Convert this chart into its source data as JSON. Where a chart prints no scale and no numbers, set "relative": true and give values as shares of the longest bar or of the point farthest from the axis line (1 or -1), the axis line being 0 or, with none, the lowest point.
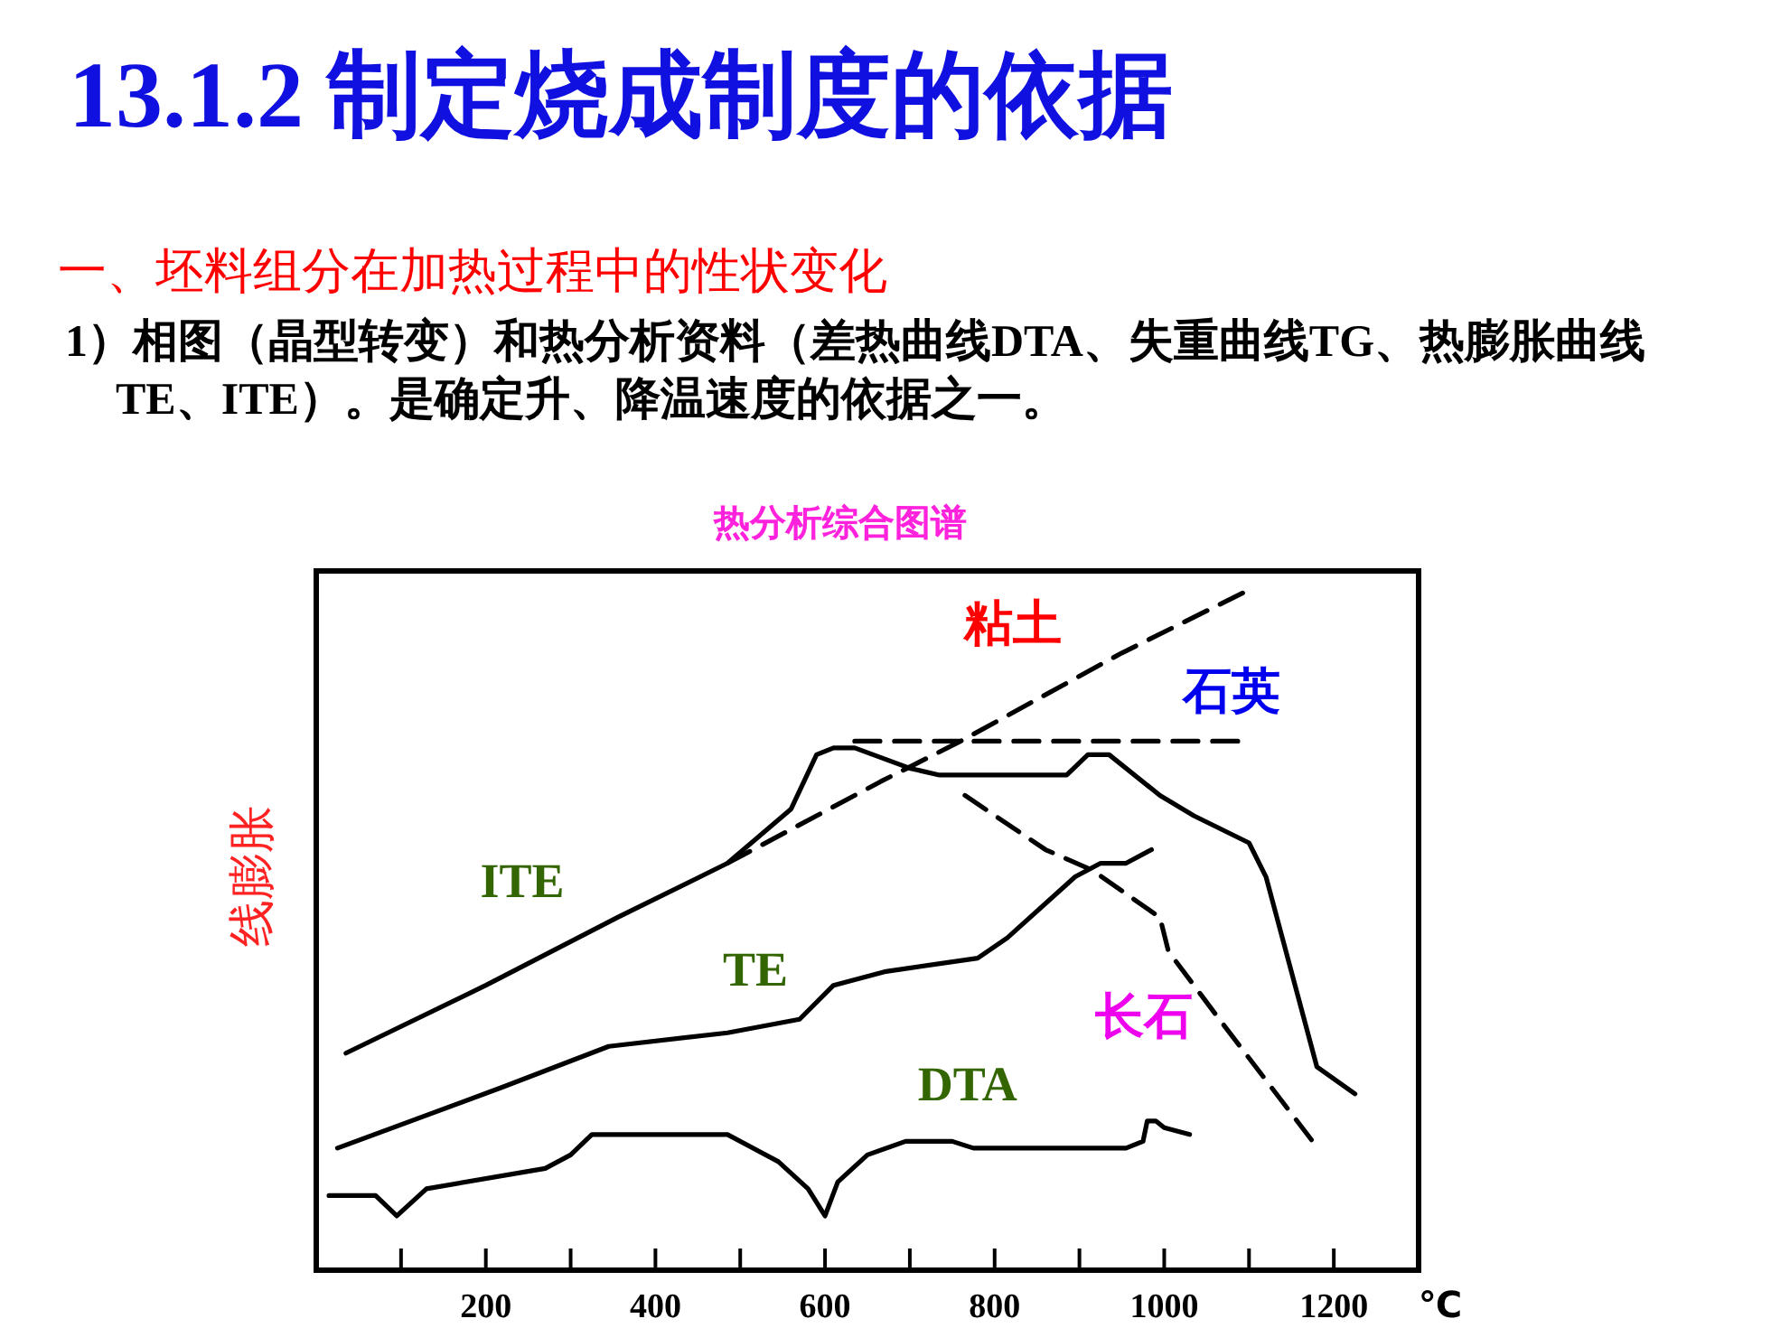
{
  "chart_data": {
    "type": "line",
    "title": "13.1.2 制定烧成制度的依据",
    "subtitle": "一、坯料组分在加热过程中的性状变化",
    "annotations": [
      "1）相图（晶型转变）和热分析资料（差热曲线DTA、失重曲线TG、热膨胀曲线TE、ITE）。是确定升、降温速度的依据之一。",
      "热分析综合图谱"
    ],
    "ylabel": "线膨胀",
    "xlabel": "℃",
    "relative": true,
    "xlim": [
      0,
      1300
    ],
    "xticks": [
      {
        "value": 100,
        "label": null
      },
      200,
      {
        "value": 300,
        "label": null
      },
      400,
      {
        "value": 500,
        "label": null
      },
      600,
      {
        "value": 700,
        "label": null
      },
      800,
      {
        "value": 900,
        "label": null
      },
      1000,
      {
        "value": 1100,
        "label": null
      },
      1200
    ],
    "series": [
      {
        "name": "ITE",
        "color": "#000000",
        "x": [
          35,
          200,
          355,
          485,
          560,
          590,
          610,
          635,
          700,
          735,
          885,
          910,
          935,
          995,
          1035,
          1100,
          1120,
          1180,
          1225
        ],
        "values": [
          0.32,
          0.42,
          0.52,
          0.6,
          0.68,
          0.76,
          0.77,
          0.77,
          0.74,
          0.73,
          0.73,
          0.76,
          0.76,
          0.7,
          0.67,
          0.63,
          0.58,
          0.3,
          0.26
        ]
      },
      {
        "name": "TE",
        "color": "#000000",
        "x": [
          25,
          220,
          345,
          485,
          570,
          610,
          670,
          780,
          815,
          895,
          925,
          955,
          985
        ],
        "values": [
          0.18,
          0.27,
          0.33,
          0.35,
          0.37,
          0.42,
          0.44,
          0.46,
          0.49,
          0.58,
          0.6,
          0.6,
          0.62
        ]
      },
      {
        "name": "DTA",
        "color": "#000000",
        "x": [
          15,
          70,
          95,
          130,
          270,
          300,
          325,
          485,
          545,
          580,
          600,
          615,
          650,
          695,
          750,
          775,
          955,
          975,
          980,
          990,
          1000,
          1030
        ],
        "values": [
          0.11,
          0.11,
          0.08,
          0.12,
          0.15,
          0.17,
          0.2,
          0.2,
          0.16,
          0.12,
          0.08,
          0.13,
          0.17,
          0.19,
          0.19,
          0.18,
          0.18,
          0.19,
          0.22,
          0.22,
          0.21,
          0.2
        ]
      },
      {
        "name": "粘土",
        "color": "#000000",
        "line_style": "dashed",
        "x": [
          485,
          665,
          760,
          950,
          1095
        ],
        "values": [
          0.6,
          0.72,
          0.78,
          0.91,
          1
        ]
      },
      {
        "name": "石英",
        "color": "#000000",
        "line_style": "dashed",
        "x": [
          635,
          1095
        ],
        "values": [
          0.78,
          0.78
        ]
      },
      {
        "name": "长石",
        "color": "#000000",
        "line_style": "dashed",
        "x": [
          765,
          860,
          915,
          995,
          1005,
          1065,
          1175
        ],
        "values": [
          0.7,
          0.62,
          0.59,
          0.52,
          0.47,
          0.37,
          0.19
        ]
      }
    ]
  }
}
